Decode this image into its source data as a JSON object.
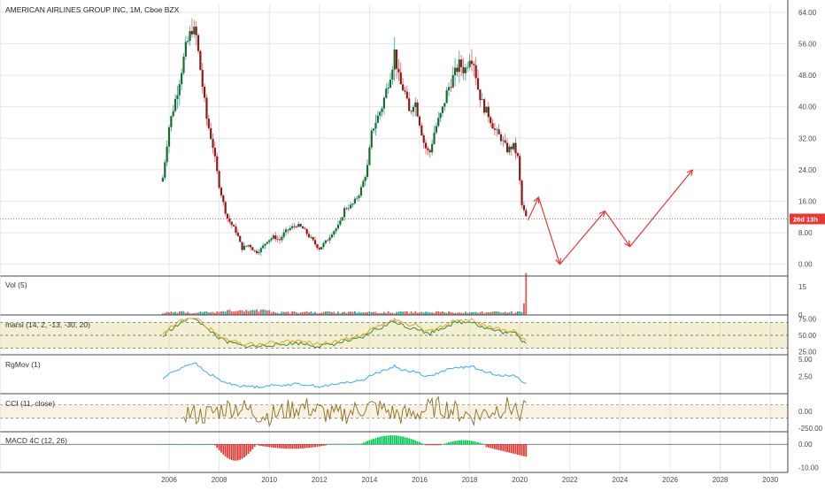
{
  "title": "AMERICAN AIRLINES GROUP INC, 1M, Cboe BZX",
  "colors": {
    "up": "#26a69a",
    "down": "#ef5350",
    "bearBody": "#8b1a1a",
    "bullBody": "#1b6b2f",
    "price_line": "#e53935",
    "vol_up": "#26a69a",
    "vol_down": "#ef5350",
    "marsi_band": "#c8b830",
    "marsi_fast": "#2e7d32",
    "marsi_slow": "#d4a017",
    "rgmov": "#42a5f5",
    "cci": "#8d6e1f",
    "macd_pos": "#00c853",
    "macd_neg": "#e53935",
    "annotation": "#e53935",
    "grid": "#e6e6e6",
    "border": "#444444"
  },
  "price_tag": "26d 13h",
  "price_axis_ticks": [
    "64.00",
    "56.00",
    "48.00",
    "40.00",
    "32.00",
    "24.00",
    "16.00",
    "8.00",
    "0.00"
  ],
  "x_axis_ticks": [
    "2006",
    "2008",
    "2010",
    "2012",
    "2014",
    "2016",
    "2018",
    "2020",
    "2022",
    "2024",
    "2026",
    "2028",
    "2030"
  ],
  "chart_data": [
    {
      "type": "candlestick",
      "title": "AMERICAN AIRLINES GROUP INC, 1M, Cboe BZX",
      "ylim": [
        -3,
        66
      ],
      "current_price": 11.5,
      "anchors": {
        "x": [
          2005.75,
          2006.0,
          2006.33,
          2006.67,
          2006.92,
          2007.08,
          2007.3,
          2007.5,
          2007.75,
          2008.0,
          2008.3,
          2008.5,
          2008.7,
          2008.9,
          2009.2,
          2009.45,
          2009.7,
          2009.9,
          2010.2,
          2010.4,
          2010.6,
          2010.8,
          2011.1,
          2011.35,
          2011.6,
          2011.85,
          2012.0,
          2012.3,
          2012.5,
          2012.8,
          2013.0,
          2013.3,
          2013.6,
          2013.9,
          2014.1,
          2014.3,
          2014.5,
          2014.7,
          2014.9,
          2015.0,
          2015.2,
          2015.4,
          2015.6,
          2015.8,
          2016.0,
          2016.2,
          2016.4,
          2016.6,
          2016.9,
          2017.1,
          2017.3,
          2017.6,
          2017.8,
          2018.0,
          2018.15,
          2018.35,
          2018.55,
          2018.75,
          2019.0,
          2019.25,
          2019.5,
          2019.75,
          2019.92,
          2020.08,
          2020.25,
          2020.33
        ],
        "close": [
          22,
          35,
          44,
          55,
          60,
          58,
          47,
          37,
          30,
          20,
          12,
          10,
          8,
          4,
          5,
          3,
          4,
          6,
          7,
          6,
          8,
          9,
          10,
          9,
          7,
          5,
          4,
          6,
          8,
          10,
          14,
          15,
          18,
          24,
          34,
          37,
          40,
          45,
          50,
          54,
          46,
          44,
          38,
          42,
          36,
          30,
          28,
          34,
          39,
          44,
          47,
          51,
          49,
          53,
          52,
          44,
          40,
          38,
          34,
          32,
          29,
          30,
          27,
          15,
          12,
          11
        ]
      }
    },
    {
      "type": "bar",
      "title": "Vol (5)",
      "ylim": [
        0,
        20
      ],
      "yticks": [
        "15",
        "0"
      ],
      "note_latest_spike": 22
    },
    {
      "type": "line",
      "title": "marsi (14, 2, -13, -30, 20)",
      "ylim": [
        20,
        80
      ],
      "yticks": [
        "75.00",
        "50.00",
        "25.00"
      ],
      "band": [
        30,
        70
      ],
      "mid": 50
    },
    {
      "type": "line",
      "title": "RgMov (1)",
      "ylim": [
        0,
        5.5
      ],
      "yticks": [
        "5.00",
        "2.50"
      ]
    },
    {
      "type": "line",
      "title": "CCI (11, close)",
      "ylim": [
        -300,
        250
      ],
      "yticks": [
        "0.00",
        "-250.00"
      ],
      "band": [
        -100,
        100
      ]
    },
    {
      "type": "bar",
      "title": "MACD 4C (12, 26)",
      "ylim": [
        -12,
        5
      ],
      "yticks": [
        "0.00",
        "-10.00"
      ]
    }
  ]
}
